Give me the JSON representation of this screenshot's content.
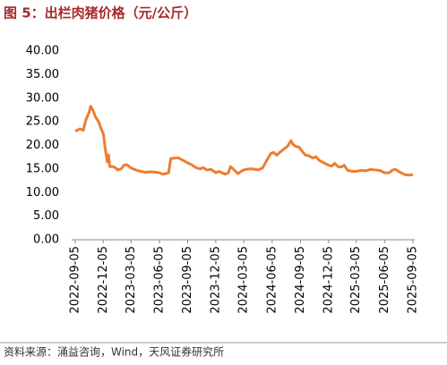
{
  "chart_data": {
    "type": "line",
    "title": "图 5：出栏肉猪价格（元/公斤）",
    "x": [
      "2022-09-05",
      "2022-09-20",
      "2022-10-01",
      "2022-10-10",
      "2022-10-20",
      "2022-10-25",
      "2022-11-01",
      "2022-11-10",
      "2022-11-20",
      "2022-11-28",
      "2022-12-05",
      "2022-12-12",
      "2022-12-18",
      "2022-12-22",
      "2022-12-26",
      "2023-01-05",
      "2023-01-15",
      "2023-01-20",
      "2023-02-01",
      "2023-02-10",
      "2023-02-20",
      "2023-03-05",
      "2023-03-20",
      "2023-04-05",
      "2023-04-20",
      "2023-05-10",
      "2023-05-25",
      "2023-06-05",
      "2023-06-15",
      "2023-06-25",
      "2023-07-05",
      "2023-07-12",
      "2023-07-25",
      "2023-08-05",
      "2023-08-15",
      "2023-08-25",
      "2023-09-05",
      "2023-09-20",
      "2023-10-01",
      "2023-10-15",
      "2023-10-25",
      "2023-11-05",
      "2023-11-20",
      "2023-12-05",
      "2023-12-15",
      "2023-12-25",
      "2024-01-05",
      "2024-01-15",
      "2024-01-22",
      "2024-02-01",
      "2024-02-15",
      "2024-02-25",
      "2024-03-05",
      "2024-03-20",
      "2024-04-05",
      "2024-04-20",
      "2024-05-05",
      "2024-05-20",
      "2024-06-01",
      "2024-06-10",
      "2024-06-20",
      "2024-07-01",
      "2024-07-15",
      "2024-07-25",
      "2024-08-05",
      "2024-08-12",
      "2024-08-20",
      "2024-09-01",
      "2024-09-10",
      "2024-09-20",
      "2024-10-01",
      "2024-10-15",
      "2024-10-25",
      "2024-11-05",
      "2024-11-20",
      "2024-12-05",
      "2024-12-15",
      "2024-12-25",
      "2025-01-05",
      "2025-01-15",
      "2025-01-25",
      "2025-02-05",
      "2025-02-20",
      "2025-03-05",
      "2025-03-20",
      "2025-04-05",
      "2025-04-20",
      "2025-05-05",
      "2025-05-20",
      "2025-06-05",
      "2025-06-20",
      "2025-07-01",
      "2025-07-10",
      "2025-07-25",
      "2025-08-10",
      "2025-08-25",
      "2025-09-05"
    ],
    "series": [
      {
        "color": "#ed7d31",
        "values": [
          23.0,
          23.5,
          23.2,
          25.5,
          27.0,
          28.3,
          27.5,
          26.0,
          25.0,
          23.5,
          22.5,
          19.0,
          16.5,
          18.0,
          15.5,
          15.5,
          15.2,
          14.8,
          15.0,
          15.8,
          15.9,
          15.2,
          14.8,
          14.5,
          14.3,
          14.4,
          14.3,
          14.2,
          13.9,
          14.0,
          14.2,
          17.2,
          17.3,
          17.4,
          17.0,
          16.7,
          16.3,
          15.8,
          15.3,
          15.0,
          15.3,
          14.8,
          14.9,
          14.2,
          14.5,
          14.2,
          13.9,
          14.2,
          15.5,
          14.9,
          14.0,
          14.5,
          14.8,
          15.0,
          15.0,
          14.8,
          15.2,
          17.0,
          18.3,
          18.5,
          17.9,
          18.6,
          19.3,
          19.8,
          21.0,
          20.2,
          19.8,
          19.6,
          18.8,
          18.0,
          17.8,
          17.3,
          17.6,
          16.8,
          16.3,
          15.8,
          15.6,
          16.2,
          15.5,
          15.4,
          15.8,
          14.7,
          14.5,
          14.5,
          14.7,
          14.6,
          14.9,
          14.8,
          14.7,
          14.2,
          14.2,
          14.8,
          14.9,
          14.3,
          13.8,
          13.7,
          13.8
        ]
      }
    ],
    "xlim": [
      "2022-09-05",
      "2025-09-05"
    ],
    "xticks": [
      "2022-09-05",
      "2022-12-05",
      "2023-03-05",
      "2023-06-05",
      "2023-09-05",
      "2023-12-05",
      "2024-03-05",
      "2024-06-05",
      "2024-09-05",
      "2024-12-05",
      "2025-03-05",
      "2025-06-05",
      "2025-09-05"
    ],
    "ylim": [
      0,
      40
    ],
    "yticks": [
      {
        "value": 0,
        "label": "0.00"
      },
      {
        "value": 5,
        "label": "5.00"
      },
      {
        "value": 10,
        "label": "10.00"
      },
      {
        "value": 15,
        "label": "15.00"
      },
      {
        "value": 20,
        "label": "20.00"
      },
      {
        "value": 25,
        "label": "25.00"
      },
      {
        "value": 30,
        "label": "30.00"
      },
      {
        "value": 35,
        "label": "35.00"
      },
      {
        "value": 40,
        "label": "40.00"
      }
    ],
    "grid": false
  },
  "source": "资料来源：涌益咨询，Wind，天风证券研究所"
}
